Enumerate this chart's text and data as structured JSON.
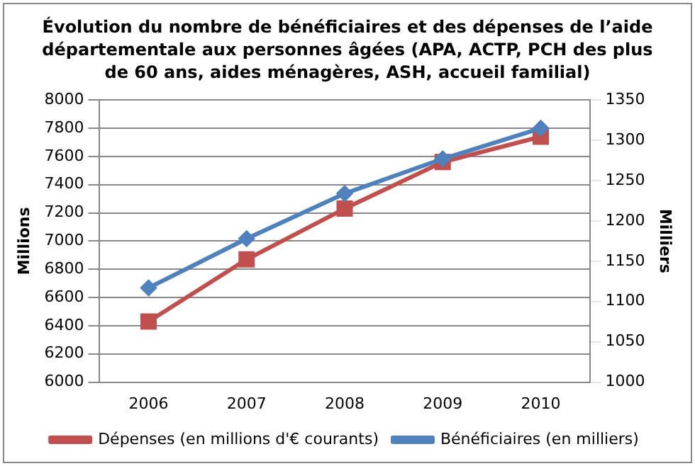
{
  "chart_data": {
    "type": "line",
    "title": "Évolution du nombre de bénéficiaires et des dépenses de l’aide départementale aux personnes âgées (APA, ACTP, PCH des plus de 60 ans, aides ménagères, ASH, accueil familial)",
    "ylabel": "Millions",
    "y2label": "Milliers",
    "categories": [
      "2006",
      "2007",
      "2008",
      "2009",
      "2010"
    ],
    "series": [
      {
        "name": "Dépenses (en millions d'€ courants)",
        "color": "#c0504d",
        "marker": "square",
        "values": [
          6430,
          6870,
          7230,
          7560,
          7740
        ]
      },
      {
        "name": "Bénéficiaires (en milliers)",
        "color": "#4f81bd",
        "marker": "diamond",
        "axis": "y2",
        "values": [
          1117,
          1178,
          1234,
          1277,
          1315
        ]
      }
    ],
    "ylim": [
      6000,
      8000
    ],
    "yticks": [
      6000,
      6200,
      6400,
      6600,
      6800,
      7000,
      7200,
      7400,
      7600,
      7800,
      8000
    ],
    "y2lim": [
      1000,
      1350
    ],
    "y2ticks": [
      1000,
      1050,
      1100,
      1150,
      1200,
      1250,
      1300,
      1350
    ],
    "grid": "y",
    "legend": "bottom"
  }
}
